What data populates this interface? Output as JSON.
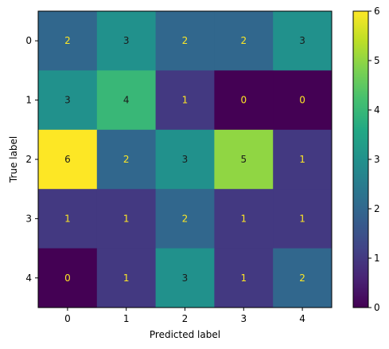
{
  "chart_data": {
    "type": "heatmap",
    "title": "",
    "xlabel": "Predicted label",
    "ylabel": "True label",
    "x_categories": [
      "0",
      "1",
      "2",
      "3",
      "4"
    ],
    "y_categories": [
      "0",
      "1",
      "2",
      "3",
      "4"
    ],
    "matrix": [
      [
        2,
        3,
        2,
        2,
        3
      ],
      [
        3,
        4,
        1,
        0,
        0
      ],
      [
        6,
        2,
        3,
        5,
        1
      ],
      [
        1,
        1,
        2,
        1,
        1
      ],
      [
        0,
        1,
        3,
        1,
        2
      ]
    ],
    "colormap": "viridis",
    "vmin": 0,
    "vmax": 6,
    "colorbar_ticks": [
      0,
      1,
      2,
      3,
      4,
      5,
      6
    ],
    "text_color_light": "#fde725",
    "text_color_dark": "#1a1a1a",
    "grid": false
  }
}
